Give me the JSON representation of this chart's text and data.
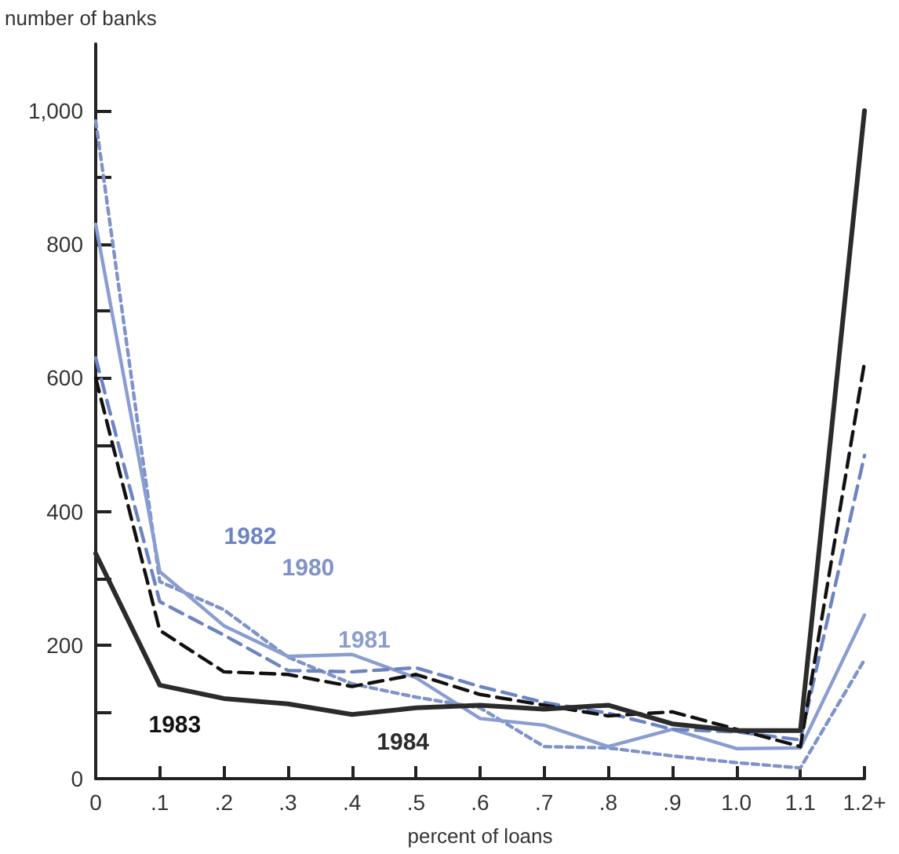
{
  "chart_data": {
    "type": "line",
    "xlabel": "percent of loans",
    "ylabel": "number of banks",
    "categories": [
      "0",
      ".1",
      ".2",
      ".3",
      ".4",
      ".5",
      ".6",
      ".7",
      ".8",
      ".9",
      "1.0",
      "1.1",
      "1.2+"
    ],
    "series": [
      {
        "name": "1980",
        "color": "#7f93c8",
        "line_style": "dotted",
        "values": [
          985,
          295,
          253,
          182,
          142,
          122,
          106,
          48,
          46,
          34,
          24,
          16,
          178
        ]
      },
      {
        "name": "1981",
        "color": "#8a9dd0",
        "line_style": "solid",
        "values": [
          830,
          310,
          229,
          183,
          186,
          151,
          90,
          80,
          48,
          74,
          45,
          46,
          245
        ]
      },
      {
        "name": "1982",
        "color": "#6c84c2",
        "line_style": "dashed",
        "values": [
          630,
          265,
          215,
          162,
          160,
          166,
          138,
          114,
          98,
          74,
          70,
          58,
          484
        ]
      },
      {
        "name": "1983",
        "color": "#111111",
        "line_style": "dashed",
        "values": [
          600,
          222,
          160,
          156,
          138,
          156,
          126,
          110,
          94,
          100,
          74,
          48,
          623
        ]
      },
      {
        "name": "1984",
        "color": "#2b2b2b",
        "line_style": "solid",
        "values": [
          337,
          140,
          120,
          112,
          96,
          106,
          110,
          104,
          110,
          82,
          72,
          72,
          1000
        ]
      }
    ],
    "ylim": [
      0,
      1100
    ],
    "yticks": [
      0,
      {
        "value": 100,
        "label": null
      },
      200,
      {
        "value": 300,
        "label": null
      },
      400,
      {
        "value": 500,
        "label": null
      },
      600,
      {
        "value": 700,
        "label": null
      },
      800,
      {
        "value": 900,
        "label": null
      },
      {
        "value": 1000,
        "label": "1,000"
      }
    ],
    "grid": false,
    "legend": false,
    "marker": "none"
  }
}
